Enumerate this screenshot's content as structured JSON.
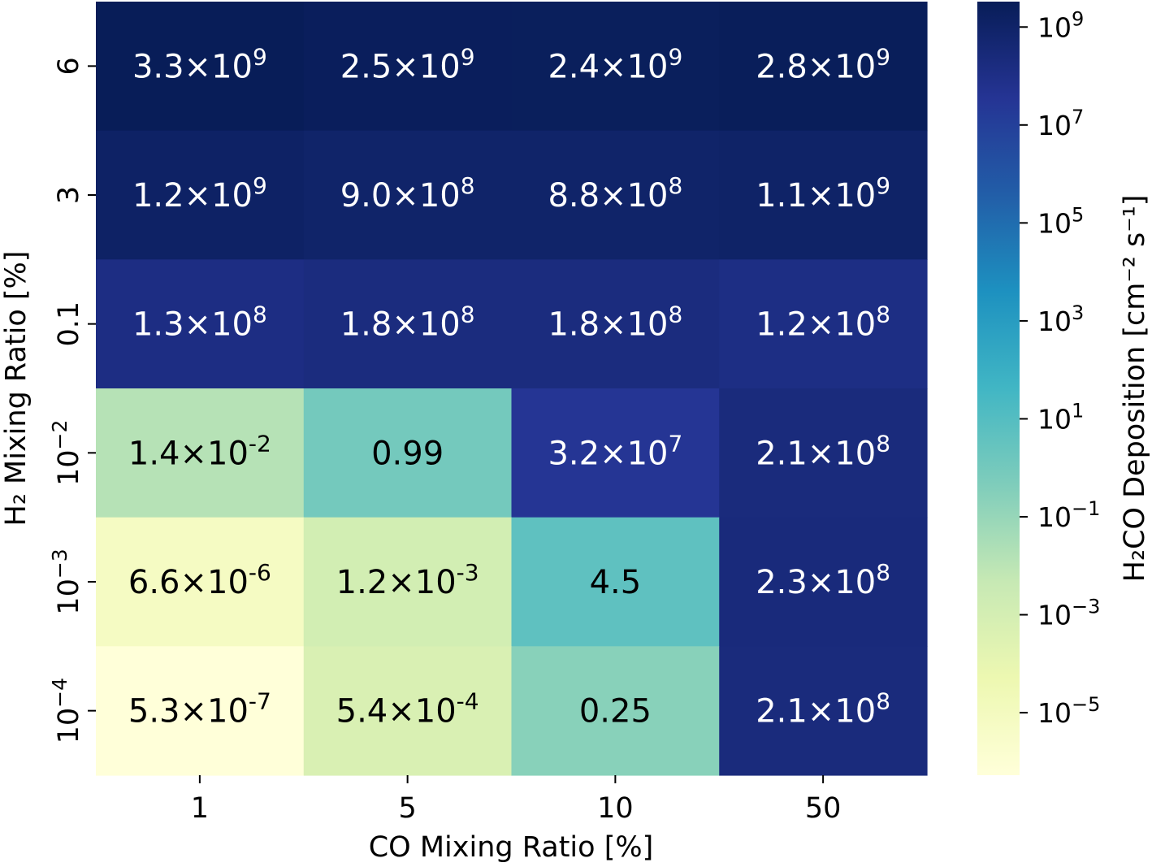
{
  "chart_data": {
    "type": "heatmap",
    "xlabel": "CO Mixing Ratio [%]",
    "ylabel": "H₂ Mixing Ratio [%]",
    "x_categories": [
      "1",
      "5",
      "10",
      "50"
    ],
    "y_categories": [
      {
        "base": "6",
        "exp": ""
      },
      {
        "base": "3",
        "exp": ""
      },
      {
        "base": "0.1",
        "exp": ""
      },
      {
        "base": "10",
        "exp": "−2"
      },
      {
        "base": "10",
        "exp": "−3"
      },
      {
        "base": "10",
        "exp": "−4"
      }
    ],
    "values": [
      [
        3300000000.0,
        2500000000.0,
        2400000000.0,
        2800000000.0
      ],
      [
        1200000000.0,
        900000000.0,
        880000000.0,
        1100000000.0
      ],
      [
        130000000.0,
        180000000.0,
        180000000.0,
        120000000.0
      ],
      [
        0.014,
        0.99,
        32000000.0,
        210000000.0
      ],
      [
        6.6e-06,
        0.0012,
        4.5,
        230000000.0
      ],
      [
        5.3e-07,
        0.00054,
        0.25,
        210000000.0
      ]
    ],
    "cell_labels": [
      [
        {
          "m": "3.3×10",
          "e": "9"
        },
        {
          "m": "2.5×10",
          "e": "9"
        },
        {
          "m": "2.4×10",
          "e": "9"
        },
        {
          "m": "2.8×10",
          "e": "9"
        }
      ],
      [
        {
          "m": "1.2×10",
          "e": "9"
        },
        {
          "m": "9.0×10",
          "e": "8"
        },
        {
          "m": "8.8×10",
          "e": "8"
        },
        {
          "m": "1.1×10",
          "e": "9"
        }
      ],
      [
        {
          "m": "1.3×10",
          "e": "8"
        },
        {
          "m": "1.8×10",
          "e": "8"
        },
        {
          "m": "1.8×10",
          "e": "8"
        },
        {
          "m": "1.2×10",
          "e": "8"
        }
      ],
      [
        {
          "m": "1.4×10",
          "e": "-2"
        },
        {
          "m": "0.99",
          "e": ""
        },
        {
          "m": "3.2×10",
          "e": "7"
        },
        {
          "m": "2.1×10",
          "e": "8"
        }
      ],
      [
        {
          "m": "6.6×10",
          "e": "-6"
        },
        {
          "m": "1.2×10",
          "e": "-3"
        },
        {
          "m": "4.5",
          "e": ""
        },
        {
          "m": "2.3×10",
          "e": "8"
        }
      ],
      [
        {
          "m": "5.3×10",
          "e": "-7"
        },
        {
          "m": "5.4×10",
          "e": "-4"
        },
        {
          "m": "0.25",
          "e": ""
        },
        {
          "m": "2.1×10",
          "e": "8"
        }
      ]
    ],
    "colorbar": {
      "label": "H₂CO Deposition [cm⁻² s⁻¹]",
      "scale": "log",
      "range": [
        5.3e-07,
        3300000000.0
      ],
      "ticks": [
        {
          "value": 1000000000.0,
          "base": "10",
          "exp": "9"
        },
        {
          "value": 10000000.0,
          "base": "10",
          "exp": "7"
        },
        {
          "value": 100000.0,
          "base": "10",
          "exp": "5"
        },
        {
          "value": 1000.0,
          "base": "10",
          "exp": "3"
        },
        {
          "value": 10.0,
          "base": "10",
          "exp": "1"
        },
        {
          "value": 0.1,
          "base": "10",
          "exp": "−1"
        },
        {
          "value": 0.001,
          "base": "10",
          "exp": "−3"
        },
        {
          "value": 1e-05,
          "base": "10",
          "exp": "−5"
        }
      ],
      "colormap": "YlGnBu",
      "colormap_stops": [
        "#ffffd9",
        "#edf8b1",
        "#c7e9b4",
        "#7fcdbb",
        "#41b6c4",
        "#1d91c0",
        "#225ea8",
        "#253494",
        "#081d58"
      ]
    }
  }
}
